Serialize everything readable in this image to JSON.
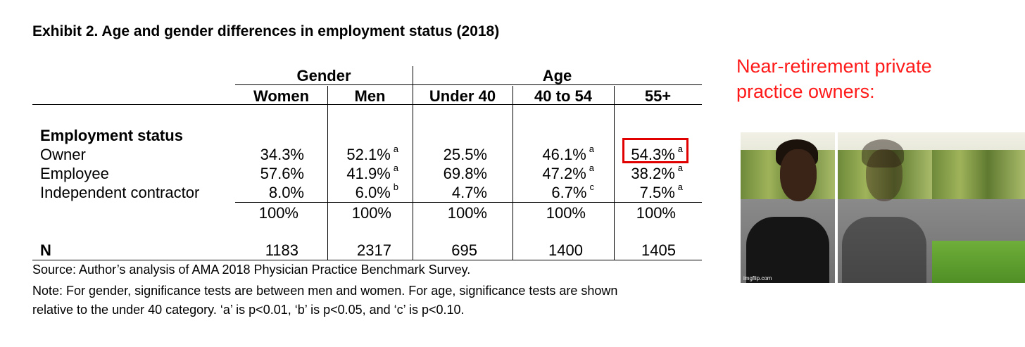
{
  "title": "Exhibit 2. Age and gender differences in employment status (2018)",
  "group_headers": {
    "gender": "Gender",
    "age": "Age"
  },
  "columns": [
    "Women",
    "Men",
    "Under 40",
    "40 to 54",
    "55+"
  ],
  "section_label": "Employment status",
  "rows": [
    {
      "label": "Owner",
      "cells": [
        {
          "v": "34.3%",
          "s": ""
        },
        {
          "v": "52.1%",
          "s": "a"
        },
        {
          "v": "25.5%",
          "s": ""
        },
        {
          "v": "46.1%",
          "s": "a"
        },
        {
          "v": "54.3%",
          "s": "a"
        }
      ]
    },
    {
      "label": "Employee",
      "cells": [
        {
          "v": "57.6%",
          "s": ""
        },
        {
          "v": "41.9%",
          "s": "a"
        },
        {
          "v": "69.8%",
          "s": ""
        },
        {
          "v": "47.2%",
          "s": "a"
        },
        {
          "v": "38.2%",
          "s": "a"
        }
      ]
    },
    {
      "label": "Independent contractor",
      "cells": [
        {
          "v": "8.0%",
          "s": ""
        },
        {
          "v": "6.0%",
          "s": "b"
        },
        {
          "v": "4.7%",
          "s": ""
        },
        {
          "v": "6.7%",
          "s": "c"
        },
        {
          "v": "7.5%",
          "s": "a"
        }
      ]
    }
  ],
  "totals": [
    "100%",
    "100%",
    "100%",
    "100%",
    "100%"
  ],
  "n_label": "N",
  "n_values": [
    "1183",
    "2317",
    "695",
    "1400",
    "1405"
  ],
  "source": "Source: Author’s analysis of AMA 2018 Physician Practice Benchmark Survey.",
  "note_line1": "Note: For gender, significance tests are between men and women. For age, significance tests are shown",
  "note_line2": "relative to the under 40 category. ‘a’ is p<0.01, ‘b’ is p<0.05, and ‘c’ is p<0.10.",
  "meme": {
    "caption_line1": "Near-retirement private",
    "caption_line2": "practice owners:",
    "watermark": "imgflip.com",
    "caption_color": "#ff1a1a",
    "highlight_color": "#e00000"
  }
}
